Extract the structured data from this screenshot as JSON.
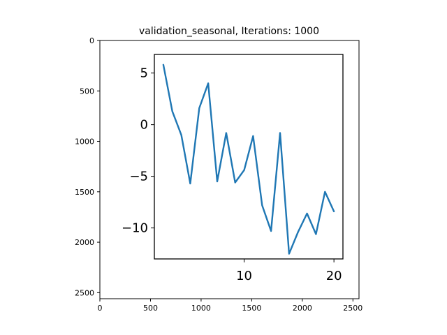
{
  "chart_data": [
    {
      "type": "image",
      "title": "validation_seasonal, Iterations: 1000",
      "xlim": [
        0,
        2560
      ],
      "ylim": [
        2560,
        0
      ],
      "x_ticks": [
        "0",
        "500",
        "1000",
        "1500",
        "2000",
        "2500"
      ],
      "y_ticks": [
        "0",
        "500",
        "1000",
        "1500",
        "2000",
        "2500"
      ]
    },
    {
      "type": "line",
      "title": "",
      "xlabel": "",
      "ylabel": "",
      "xlim": [
        0,
        21
      ],
      "ylim": [
        -13,
        6.8
      ],
      "x_ticks": [
        "10",
        "20"
      ],
      "y_ticks": [
        "5",
        "0",
        "−5",
        "−10"
      ],
      "series": [
        {
          "color": "#1f77b4",
          "x": [
            1,
            2,
            3,
            4,
            5,
            6,
            7,
            8,
            9,
            10,
            11,
            12,
            13,
            14,
            15,
            16,
            17,
            18,
            19,
            20
          ],
          "y": [
            5.8,
            1.3,
            -1.0,
            -5.7,
            1.6,
            4.0,
            -5.5,
            -0.8,
            -5.6,
            -4.4,
            -1.1,
            -7.8,
            -10.3,
            -0.8,
            -12.5,
            -10.4,
            -8.6,
            -10.6,
            -6.5,
            -8.4
          ]
        }
      ]
    }
  ]
}
